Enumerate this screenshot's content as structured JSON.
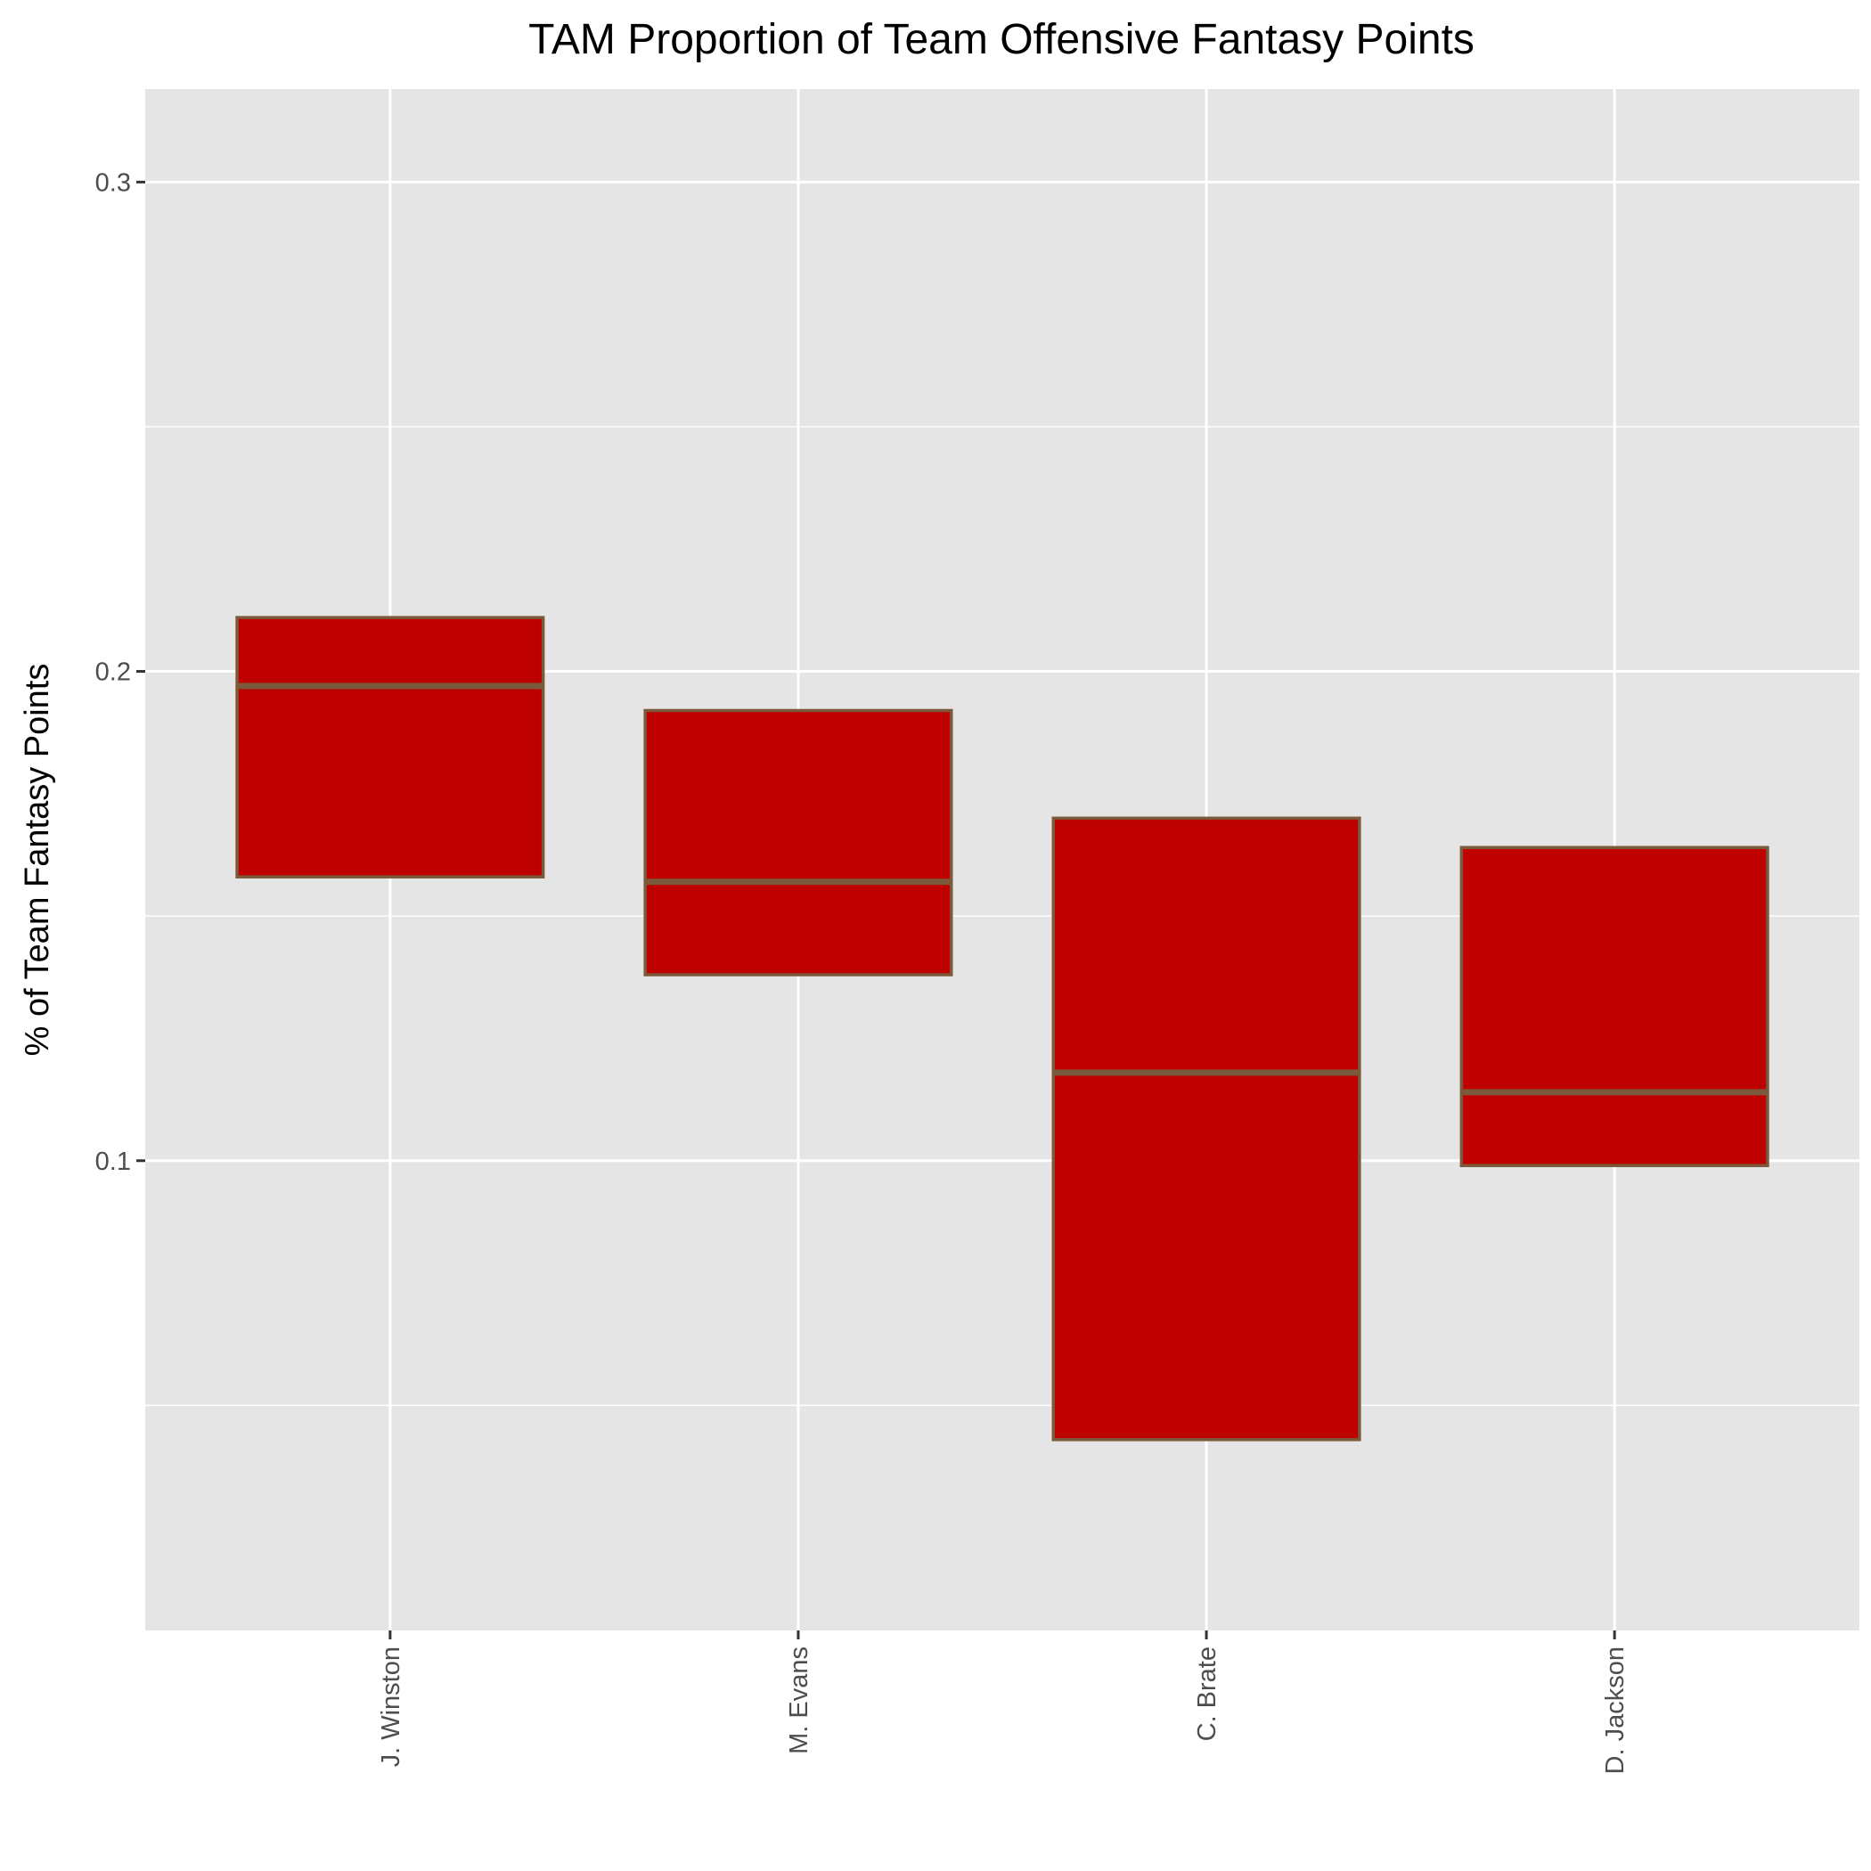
{
  "chart_data": {
    "type": "boxplot",
    "title": "TAM Proportion of Team Offensive Fantasy Points",
    "xlabel": "",
    "ylabel": "% of Team Fantasy Points",
    "categories": [
      "J. Winston",
      "M. Evans",
      "C. Brate",
      "D. Jackson"
    ],
    "boxes": [
      {
        "name": "J. Winston",
        "q1": 0.158,
        "median": 0.197,
        "q3": 0.211
      },
      {
        "name": "M. Evans",
        "q1": 0.138,
        "median": 0.157,
        "q3": 0.192
      },
      {
        "name": "C. Brate",
        "q1": 0.043,
        "median": 0.118,
        "q3": 0.17
      },
      {
        "name": "D. Jackson",
        "q1": 0.099,
        "median": 0.114,
        "q3": 0.164
      }
    ],
    "ylim": [
      0.004,
      0.319
    ],
    "yticks": [
      "0.1",
      "0.2",
      "0.3"
    ],
    "ytick_values": [
      0.1,
      0.2,
      0.3
    ],
    "grid": true,
    "colors": {
      "panel_bg": "#e5e5e5",
      "grid": "#ffffff",
      "box_fill": "#bf0000",
      "box_outline": "#7a5a3a",
      "median": "#7a5a3a",
      "tick": "#333333"
    }
  }
}
